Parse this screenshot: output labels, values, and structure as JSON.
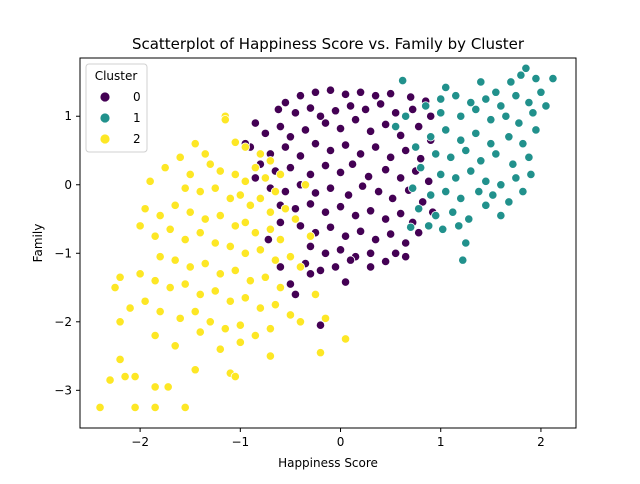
{
  "chart_data": {
    "type": "scatter",
    "title": "Scatterplot of Happiness Score vs. Family by Cluster",
    "xlabel": "Happiness Score",
    "ylabel": "Family",
    "xlim": [
      -2.6,
      2.35
    ],
    "ylim": [
      -3.55,
      1.85
    ],
    "xticks": [
      -2,
      -1,
      0,
      1,
      2
    ],
    "yticks": [
      -3,
      -2,
      -1,
      0,
      1
    ],
    "xtick_labels": [
      "−2",
      "−1",
      "0",
      "1",
      "2"
    ],
    "ytick_labels": [
      "−3",
      "−2",
      "−1",
      "0",
      "1"
    ],
    "grid": false,
    "legend": {
      "title": "Cluster",
      "placement": "top-left",
      "entries": [
        "0",
        "1",
        "2"
      ]
    },
    "colors": {
      "0": "#440154",
      "1": "#21918c",
      "2": "#fde725",
      "edge": "#ffffff",
      "axes": "#000000"
    },
    "series": [
      {
        "name": "0",
        "color": "#440154",
        "points": [
          [
            -0.62,
            1.1
          ],
          [
            -0.55,
            1.2
          ],
          [
            -0.4,
            1.3
          ],
          [
            -0.25,
            1.35
          ],
          [
            -0.1,
            1.38
          ],
          [
            0.05,
            1.32
          ],
          [
            0.2,
            1.35
          ],
          [
            0.35,
            1.3
          ],
          [
            0.5,
            1.33
          ],
          [
            0.7,
            1.28
          ],
          [
            0.85,
            1.22
          ],
          [
            -0.45,
            1.05
          ],
          [
            -0.3,
            1.12
          ],
          [
            -0.2,
            1.0
          ],
          [
            -0.05,
            1.08
          ],
          [
            0.1,
            1.15
          ],
          [
            0.25,
            1.1
          ],
          [
            0.4,
            1.18
          ],
          [
            0.55,
            1.05
          ],
          [
            0.72,
            1.1
          ],
          [
            0.9,
            1.0
          ],
          [
            -0.85,
            0.9
          ],
          [
            -0.75,
            0.75
          ],
          [
            -0.6,
            0.85
          ],
          [
            -0.5,
            0.7
          ],
          [
            -0.35,
            0.8
          ],
          [
            -0.15,
            0.9
          ],
          [
            0.0,
            0.82
          ],
          [
            0.15,
            0.95
          ],
          [
            0.3,
            0.78
          ],
          [
            0.45,
            0.88
          ],
          [
            0.6,
            0.72
          ],
          [
            0.78,
            0.85
          ],
          [
            0.9,
            0.65
          ],
          [
            -0.9,
            0.55
          ],
          [
            -0.7,
            0.45
          ],
          [
            -0.55,
            0.55
          ],
          [
            -0.4,
            0.42
          ],
          [
            -0.25,
            0.6
          ],
          [
            -0.1,
            0.5
          ],
          [
            0.05,
            0.58
          ],
          [
            0.2,
            0.45
          ],
          [
            0.35,
            0.55
          ],
          [
            0.5,
            0.4
          ],
          [
            0.65,
            0.5
          ],
          [
            0.8,
            0.38
          ],
          [
            -0.8,
            0.3
          ],
          [
            -0.65,
            0.2
          ],
          [
            -0.5,
            0.25
          ],
          [
            -0.3,
            0.15
          ],
          [
            -0.15,
            0.28
          ],
          [
            0.0,
            0.18
          ],
          [
            0.12,
            0.3
          ],
          [
            0.28,
            0.12
          ],
          [
            0.45,
            0.22
          ],
          [
            0.6,
            0.1
          ],
          [
            0.75,
            0.2
          ],
          [
            0.88,
            0.05
          ],
          [
            -0.7,
            -0.05
          ],
          [
            -0.55,
            -0.1
          ],
          [
            -0.4,
            0.0
          ],
          [
            -0.25,
            -0.12
          ],
          [
            -0.1,
            -0.05
          ],
          [
            0.08,
            -0.15
          ],
          [
            0.22,
            -0.02
          ],
          [
            0.38,
            -0.1
          ],
          [
            0.52,
            -0.2
          ],
          [
            0.68,
            -0.08
          ],
          [
            0.82,
            -0.25
          ],
          [
            -0.6,
            -0.3
          ],
          [
            -0.45,
            -0.35
          ],
          [
            -0.3,
            -0.28
          ],
          [
            -0.15,
            -0.4
          ],
          [
            0.0,
            -0.32
          ],
          [
            0.15,
            -0.45
          ],
          [
            0.3,
            -0.38
          ],
          [
            0.45,
            -0.5
          ],
          [
            0.6,
            -0.42
          ],
          [
            0.72,
            -0.55
          ],
          [
            -0.4,
            -0.6
          ],
          [
            -0.25,
            -0.7
          ],
          [
            -0.1,
            -0.62
          ],
          [
            0.05,
            -0.75
          ],
          [
            0.2,
            -0.68
          ],
          [
            0.35,
            -0.8
          ],
          [
            0.5,
            -0.72
          ],
          [
            0.65,
            -0.85
          ],
          [
            -0.3,
            -0.9
          ],
          [
            -0.15,
            -1.0
          ],
          [
            0.0,
            -0.95
          ],
          [
            0.15,
            -1.05
          ],
          [
            0.3,
            -1.0
          ],
          [
            0.45,
            -1.12
          ],
          [
            0.55,
            -1.0
          ],
          [
            -0.35,
            -1.15
          ],
          [
            -0.2,
            -1.25
          ],
          [
            -0.05,
            -1.2
          ],
          [
            0.1,
            -1.1
          ],
          [
            0.3,
            -1.2
          ],
          [
            -0.5,
            -1.45
          ],
          [
            -0.3,
            -1.3
          ],
          [
            0.05,
            -1.42
          ],
          [
            -0.2,
            -2.05
          ],
          [
            -0.45,
            -1.6
          ],
          [
            -0.6,
            -1.2
          ],
          [
            -0.72,
            -0.8
          ],
          [
            -0.85,
            0.1
          ],
          [
            -0.95,
            0.6
          ],
          [
            -0.6,
            -0.55
          ],
          [
            0.65,
            -1.05
          ],
          [
            0.78,
            -0.7
          ],
          [
            0.92,
            -0.4
          ]
        ]
      },
      {
        "name": "1",
        "color": "#21918c",
        "points": [
          [
            0.62,
            1.52
          ],
          [
            1.05,
            1.42
          ],
          [
            1.4,
            1.5
          ],
          [
            1.55,
            1.35
          ],
          [
            1.7,
            1.5
          ],
          [
            1.85,
            1.7
          ],
          [
            1.95,
            1.55
          ],
          [
            2.12,
            1.55
          ],
          [
            1.8,
            1.6
          ],
          [
            1.0,
            1.25
          ],
          [
            1.15,
            1.3
          ],
          [
            1.3,
            1.2
          ],
          [
            1.45,
            1.25
          ],
          [
            1.6,
            1.15
          ],
          [
            1.75,
            1.3
          ],
          [
            1.88,
            1.2
          ],
          [
            0.85,
            1.15
          ],
          [
            1.0,
            1.05
          ],
          [
            1.2,
            1.0
          ],
          [
            1.35,
            1.1
          ],
          [
            1.5,
            0.95
          ],
          [
            1.65,
            1.0
          ],
          [
            1.78,
            0.9
          ],
          [
            1.92,
            1.05
          ],
          [
            0.9,
            0.7
          ],
          [
            1.05,
            0.8
          ],
          [
            1.2,
            0.65
          ],
          [
            1.35,
            0.75
          ],
          [
            1.5,
            0.6
          ],
          [
            1.68,
            0.7
          ],
          [
            1.82,
            0.6
          ],
          [
            1.95,
            0.8
          ],
          [
            0.75,
            0.55
          ],
          [
            0.95,
            0.45
          ],
          [
            1.1,
            0.4
          ],
          [
            1.25,
            0.5
          ],
          [
            1.4,
            0.35
          ],
          [
            1.55,
            0.45
          ],
          [
            1.72,
            0.3
          ],
          [
            1.88,
            0.4
          ],
          [
            0.8,
            0.25
          ],
          [
            1.0,
            0.15
          ],
          [
            1.15,
            0.1
          ],
          [
            1.3,
            0.2
          ],
          [
            1.45,
            0.05
          ],
          [
            1.6,
            0.0
          ],
          [
            1.75,
            0.1
          ],
          [
            1.9,
            0.15
          ],
          [
            0.72,
            -0.05
          ],
          [
            0.9,
            -0.15
          ],
          [
            1.05,
            -0.1
          ],
          [
            1.2,
            -0.2
          ],
          [
            1.38,
            -0.1
          ],
          [
            1.52,
            -0.15
          ],
          [
            1.68,
            -0.25
          ],
          [
            1.82,
            -0.1
          ],
          [
            0.78,
            -0.35
          ],
          [
            0.95,
            -0.45
          ],
          [
            1.12,
            -0.4
          ],
          [
            1.28,
            -0.5
          ],
          [
            1.45,
            -0.3
          ],
          [
            1.6,
            -0.45
          ],
          [
            0.7,
            -0.62
          ],
          [
            0.88,
            -0.6
          ],
          [
            1.02,
            -0.65
          ],
          [
            1.18,
            -0.6
          ],
          [
            1.25,
            -0.85
          ],
          [
            1.22,
            -1.1
          ],
          [
            0.55,
            0.85
          ],
          [
            0.65,
            1.0
          ],
          [
            2.0,
            1.35
          ],
          [
            2.05,
            1.15
          ]
        ]
      },
      {
        "name": "2",
        "color": "#fde725",
        "points": [
          [
            -1.45,
            0.6
          ],
          [
            -1.15,
            1.0
          ],
          [
            -1.15,
            0.95
          ],
          [
            -1.05,
            0.62
          ],
          [
            -0.95,
            0.55
          ],
          [
            -0.8,
            0.45
          ],
          [
            -0.7,
            0.35
          ],
          [
            -1.6,
            0.4
          ],
          [
            -1.75,
            0.25
          ],
          [
            -1.9,
            0.05
          ],
          [
            -1.3,
            0.3
          ],
          [
            -1.2,
            0.2
          ],
          [
            -1.05,
            0.15
          ],
          [
            -0.95,
            0.05
          ],
          [
            -0.85,
            0.25
          ],
          [
            -0.75,
            0.1
          ],
          [
            -0.65,
            -0.1
          ],
          [
            -0.6,
            0.15
          ],
          [
            -1.55,
            -0.05
          ],
          [
            -1.4,
            -0.1
          ],
          [
            -1.25,
            -0.05
          ],
          [
            -1.1,
            -0.2
          ],
          [
            -1.0,
            -0.15
          ],
          [
            -0.9,
            -0.3
          ],
          [
            -0.8,
            -0.2
          ],
          [
            -0.7,
            -0.4
          ],
          [
            -0.55,
            -0.35
          ],
          [
            -1.95,
            -0.35
          ],
          [
            -1.8,
            -0.45
          ],
          [
            -1.65,
            -0.3
          ],
          [
            -1.5,
            -0.4
          ],
          [
            -1.35,
            -0.5
          ],
          [
            -1.2,
            -0.45
          ],
          [
            -1.05,
            -0.6
          ],
          [
            -0.95,
            -0.55
          ],
          [
            -0.85,
            -0.7
          ],
          [
            -0.7,
            -0.65
          ],
          [
            -0.6,
            -0.8
          ],
          [
            -2.0,
            -0.6
          ],
          [
            -1.85,
            -0.75
          ],
          [
            -1.7,
            -0.65
          ],
          [
            -1.55,
            -0.8
          ],
          [
            -1.4,
            -0.7
          ],
          [
            -1.25,
            -0.85
          ],
          [
            -1.1,
            -0.9
          ],
          [
            -0.95,
            -1.0
          ],
          [
            -0.8,
            -0.95
          ],
          [
            -0.65,
            -1.1
          ],
          [
            -0.5,
            -1.05
          ],
          [
            -1.8,
            -1.05
          ],
          [
            -1.65,
            -1.1
          ],
          [
            -1.5,
            -1.2
          ],
          [
            -1.35,
            -1.15
          ],
          [
            -1.2,
            -1.3
          ],
          [
            -1.05,
            -1.25
          ],
          [
            -0.9,
            -1.4
          ],
          [
            -0.75,
            -1.35
          ],
          [
            -0.6,
            -1.5
          ],
          [
            -2.0,
            -1.3
          ],
          [
            -1.85,
            -1.4
          ],
          [
            -1.7,
            -1.5
          ],
          [
            -1.55,
            -1.45
          ],
          [
            -1.4,
            -1.6
          ],
          [
            -1.25,
            -1.55
          ],
          [
            -1.1,
            -1.7
          ],
          [
            -0.95,
            -1.65
          ],
          [
            -0.8,
            -1.8
          ],
          [
            -0.65,
            -1.75
          ],
          [
            -0.5,
            -1.9
          ],
          [
            -0.4,
            -2.0
          ],
          [
            -2.25,
            -1.5
          ],
          [
            -2.2,
            -1.35
          ],
          [
            -1.95,
            -1.7
          ],
          [
            -1.8,
            -1.85
          ],
          [
            -1.6,
            -1.95
          ],
          [
            -1.45,
            -1.85
          ],
          [
            -1.3,
            -2.0
          ],
          [
            -1.15,
            -2.1
          ],
          [
            -1.0,
            -2.05
          ],
          [
            -0.85,
            -2.2
          ],
          [
            -0.7,
            -2.1
          ],
          [
            -2.2,
            -2.0
          ],
          [
            -2.1,
            -1.8
          ],
          [
            -1.85,
            -2.2
          ],
          [
            -1.65,
            -2.35
          ],
          [
            -1.4,
            -2.15
          ],
          [
            -1.2,
            -2.4
          ],
          [
            -1.0,
            -2.3
          ],
          [
            -0.7,
            -2.5
          ],
          [
            -0.2,
            -2.45
          ],
          [
            0.05,
            -2.25
          ],
          [
            -2.2,
            -2.55
          ],
          [
            -2.3,
            -2.85
          ],
          [
            -2.15,
            -2.8
          ],
          [
            -2.05,
            -2.8
          ],
          [
            -1.85,
            -2.95
          ],
          [
            -1.72,
            -2.95
          ],
          [
            -1.45,
            -2.7
          ],
          [
            -1.1,
            -2.75
          ],
          [
            -1.05,
            -2.8
          ],
          [
            -2.4,
            -3.25
          ],
          [
            -2.05,
            -3.25
          ],
          [
            -1.85,
            -3.25
          ],
          [
            -1.55,
            -3.25
          ],
          [
            -0.35,
            0.0
          ],
          [
            -0.45,
            -0.5
          ],
          [
            -0.3,
            -0.75
          ],
          [
            -0.4,
            -1.2
          ],
          [
            -0.25,
            -1.6
          ],
          [
            -0.15,
            -1.95
          ],
          [
            -1.5,
            0.15
          ],
          [
            -1.35,
            0.45
          ]
        ]
      }
    ]
  }
}
